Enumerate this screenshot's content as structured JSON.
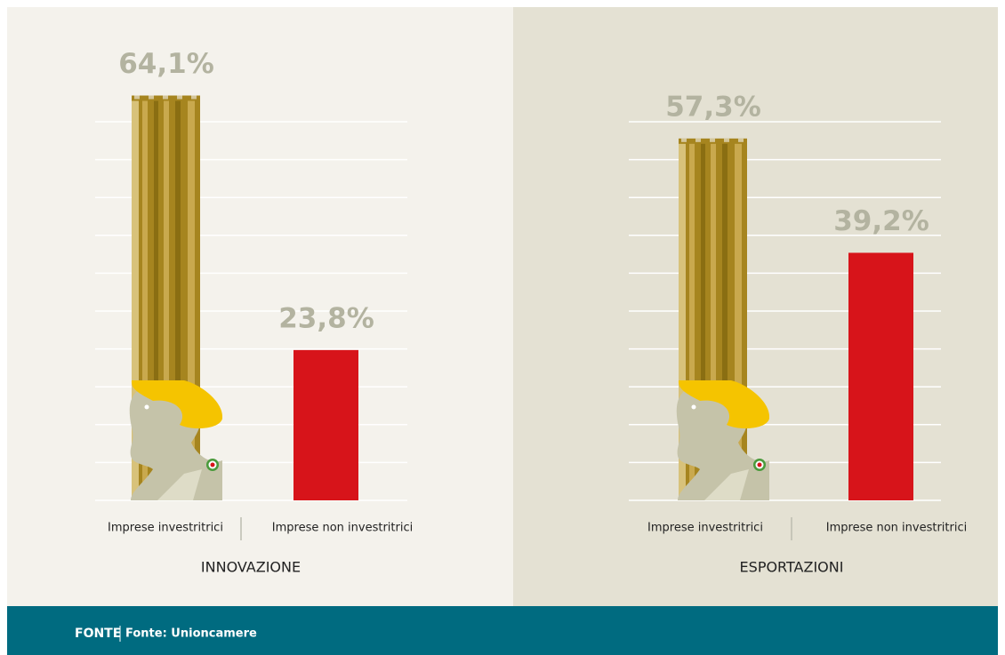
{
  "chart_data": [
    {
      "type": "bar",
      "xlabel": "INNOVAZIONE",
      "categories": [
        "Imprese investritrici",
        "Imprese non investritrici"
      ],
      "values": [
        64.1,
        23.8
      ],
      "value_labels": [
        "64,1%",
        "23,8%"
      ],
      "colors": [
        "#a6851f",
        "#d7141a"
      ],
      "ylim": [
        0,
        66
      ]
    },
    {
      "type": "bar",
      "xlabel": "ESPORTAZIONI",
      "categories": [
        "Imprese investritrici",
        "Imprese non investritrici"
      ],
      "values": [
        57.3,
        39.2
      ],
      "value_labels": [
        "57,3%",
        "39,2%"
      ],
      "colors": [
        "#a6851f",
        "#d7141a"
      ],
      "ylim": [
        0,
        66
      ]
    }
  ],
  "footer": {
    "label": "FONTE",
    "source": "Fonte: Unioncamere"
  }
}
